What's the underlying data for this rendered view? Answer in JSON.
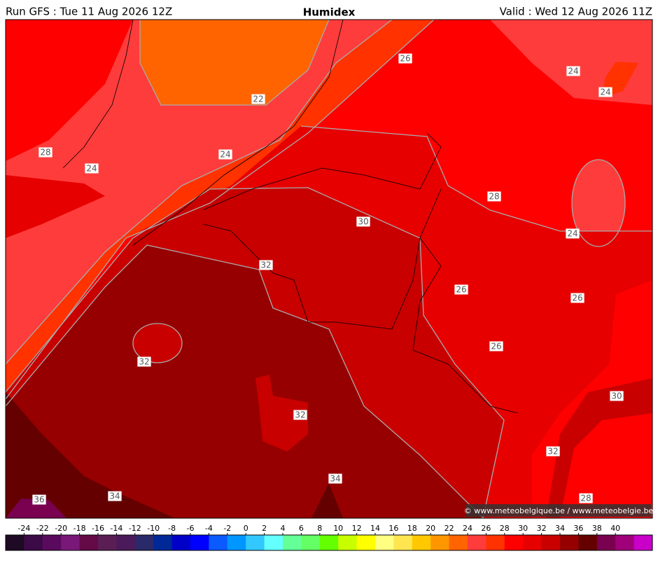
{
  "header": {
    "left": "Run GFS : Tue 11 Aug 2026 12Z",
    "title": "Humidex",
    "right": "Valid : Wed 12 Aug 2026 11Z"
  },
  "contour_labels": [
    22,
    24,
    24,
    28,
    26,
    24,
    24,
    28,
    30,
    24,
    32,
    26,
    26,
    26,
    32,
    32,
    30,
    32,
    34,
    34,
    36,
    28
  ],
  "credit": "© www.meteobelgique.be / www.meteobelgie.be",
  "colorbar": {
    "ticks": [
      -24,
      -22,
      -20,
      -18,
      -16,
      -14,
      -12,
      -10,
      -8,
      -6,
      -4,
      -2,
      0,
      2,
      4,
      6,
      8,
      10,
      12,
      14,
      16,
      18,
      20,
      22,
      24,
      26,
      28,
      30,
      32,
      34,
      36,
      38,
      40
    ],
    "colors": [
      "#1e0a24",
      "#3c0a46",
      "#5a0a5e",
      "#7a187a",
      "#640a46",
      "#5a1e55",
      "#4a1a5a",
      "#2a2a6a",
      "#002896",
      "#0000c8",
      "#0000ff",
      "#0a5aff",
      "#0096ff",
      "#32c8ff",
      "#64ffff",
      "#64ff96",
      "#64ff64",
      "#64ff00",
      "#c8ff00",
      "#ffff00",
      "#ffff82",
      "#ffe650",
      "#ffc800",
      "#ff9600",
      "#ff6400",
      "#ff3c3c",
      "#ff3200",
      "#ff0000",
      "#e60000",
      "#c80000",
      "#960000",
      "#640000",
      "#7a0050",
      "#a0007a",
      "#c800c8"
    ]
  }
}
